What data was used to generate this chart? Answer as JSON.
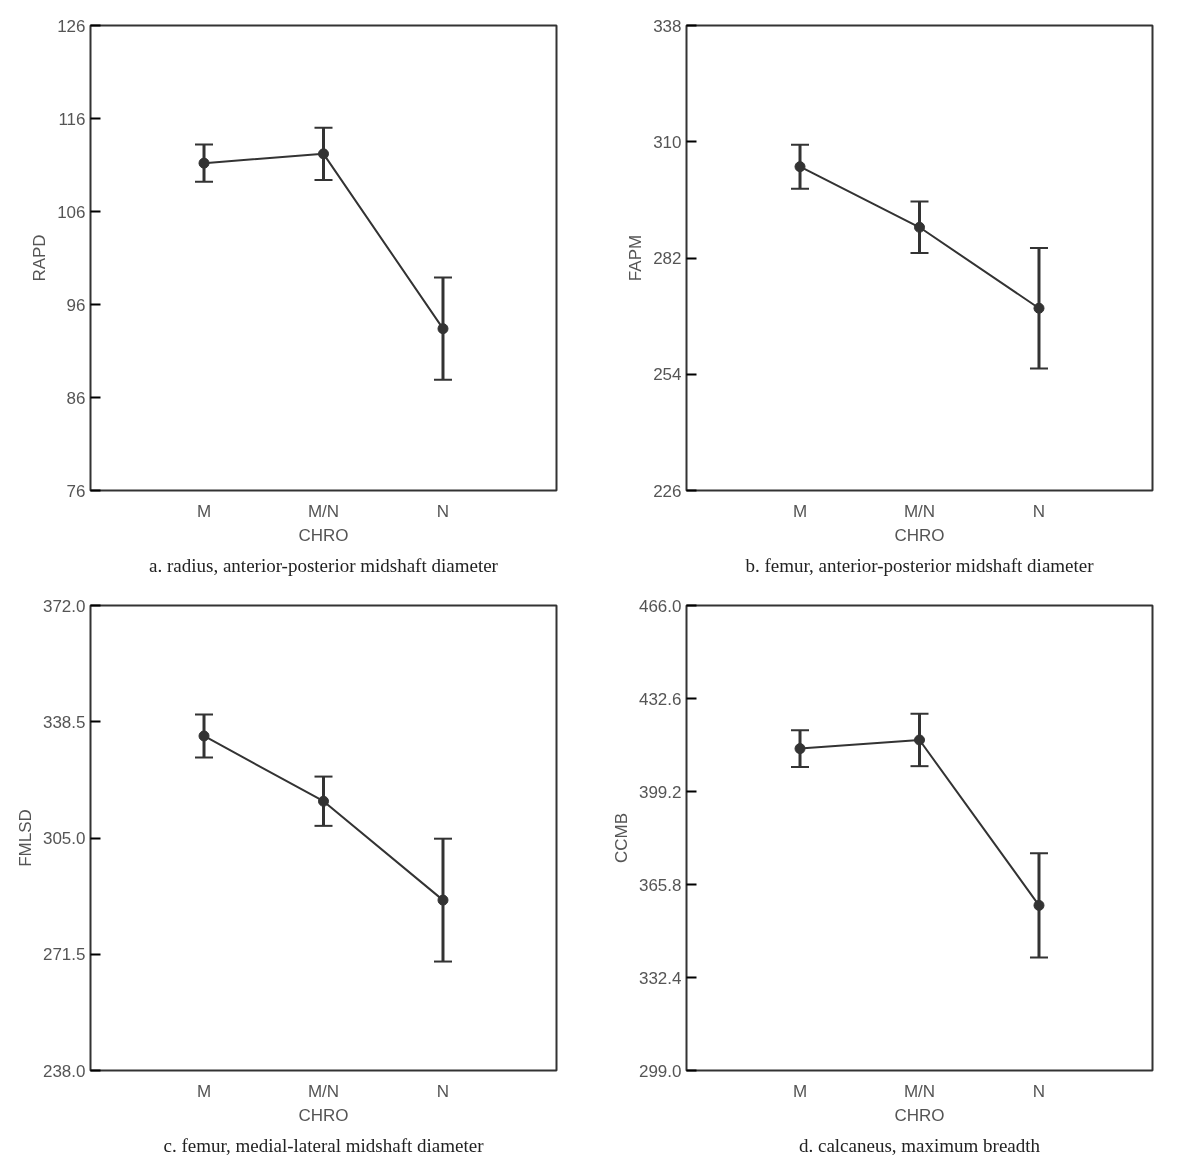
{
  "chart_data": [
    {
      "type": "line",
      "title": "a. radius, anterior-posterior midshaft diameter",
      "xlabel": "CHRO",
      "ylabel": "RAPD",
      "categories": [
        "M",
        "M/N",
        "N"
      ],
      "values": [
        111.2,
        112.2,
        93.4
      ],
      "errors": [
        2.0,
        2.8,
        5.5
      ],
      "color": "#333333",
      "marker": "circle",
      "ylim": [
        76,
        126
      ],
      "yticks": [
        76,
        86,
        96,
        106,
        116,
        126
      ]
    },
    {
      "type": "line",
      "title": "b. femur, anterior-posterior midshaft diameter",
      "xlabel": "CHRO",
      "ylabel": "FAPM",
      "categories": [
        "M",
        "M/N",
        "N"
      ],
      "values": [
        304.0,
        289.4,
        269.9
      ],
      "errors": [
        5.3,
        6.2,
        14.5
      ],
      "color": "#333333",
      "marker": "circle",
      "ylim": [
        226,
        338
      ],
      "yticks": [
        226,
        254,
        282,
        310,
        338
      ]
    },
    {
      "type": "line",
      "title": "c. femur, medial-lateral midshaft diameter",
      "xlabel": "CHRO",
      "ylabel": "FMLSD",
      "categories": [
        "M",
        "M/N",
        "N"
      ],
      "values": [
        334.4,
        315.6,
        287.1
      ],
      "errors": [
        6.2,
        7.1,
        17.7
      ],
      "color": "#333333",
      "marker": "circle",
      "ylim": [
        238,
        372
      ],
      "yticks": [
        {
          "value": 238,
          "label": "238.0"
        },
        {
          "value": 271.5,
          "label": "271.5"
        },
        {
          "value": 305,
          "label": "305.0"
        },
        {
          "value": 338.5,
          "label": "338.5"
        },
        {
          "value": 372,
          "label": "372.0"
        }
      ]
    },
    {
      "type": "line",
      "title": "d. calcaneus, maximum breadth",
      "xlabel": "CHRO",
      "ylabel": "CCMB",
      "categories": [
        "M",
        "M/N",
        "N"
      ],
      "values": [
        414.6,
        417.7,
        358.3
      ],
      "errors": [
        6.6,
        9.4,
        18.7
      ],
      "color": "#333333",
      "marker": "circle",
      "ylim": [
        299,
        466
      ],
      "yticks": [
        {
          "value": 299,
          "label": "299.0"
        },
        {
          "value": 332.4,
          "label": "332.4"
        },
        {
          "value": 365.8,
          "label": "365.8"
        },
        {
          "value": 399.2,
          "label": "399.2"
        },
        {
          "value": 432.6,
          "label": "432.6"
        },
        {
          "value": 466,
          "label": "466.0"
        }
      ]
    }
  ]
}
